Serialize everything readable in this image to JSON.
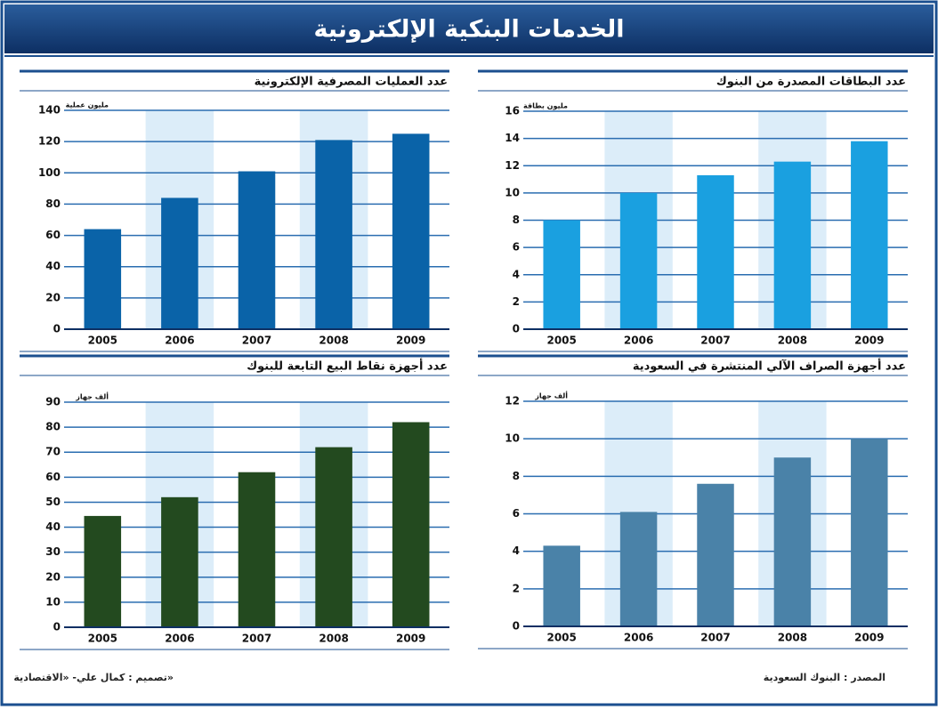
{
  "header": {
    "title": "الخدمات البنكية الإلكترونية"
  },
  "chart_data": [
    {
      "type": "bar",
      "title": "عدد العمليات المصرفية الإلكترونية",
      "unit": "مليون عملية",
      "categories": [
        "2005",
        "2006",
        "2007",
        "2008",
        "2009"
      ],
      "values": [
        64,
        84,
        101,
        121,
        125
      ],
      "color": "#0a63a8",
      "ylim": [
        0,
        140
      ],
      "yticks": [
        0,
        20,
        40,
        60,
        80,
        100,
        120,
        140
      ],
      "grid": true
    },
    {
      "type": "bar",
      "title": "عدد البطاقات المصدرة من البنوك",
      "unit": "مليون بطاقة",
      "categories": [
        "2005",
        "2006",
        "2007",
        "2008",
        "2009"
      ],
      "values": [
        8,
        10,
        11.3,
        12.3,
        13.8
      ],
      "color": "#1aa0e0",
      "ylim": [
        0,
        16
      ],
      "yticks": [
        0,
        2,
        4,
        6,
        8,
        10,
        12,
        14,
        16
      ],
      "grid": true
    },
    {
      "type": "bar",
      "title": "عدد أجهزة نقاط البيع التابعة للبنوك",
      "unit": "ألف جهاز",
      "categories": [
        "2005",
        "2006",
        "2007",
        "2008",
        "2009"
      ],
      "values": [
        44.5,
        52,
        62,
        72,
        82
      ],
      "color": "#234a1f",
      "ylim": [
        0,
        90
      ],
      "yticks": [
        0,
        10,
        20,
        30,
        40,
        50,
        60,
        70,
        80,
        90
      ],
      "grid": true
    },
    {
      "type": "bar",
      "title": "عدد أجهزة الصراف الآلي المنتشرة في السعودية",
      "unit": "ألف جهاز",
      "categories": [
        "2005",
        "2006",
        "2007",
        "2008",
        "2009"
      ],
      "values": [
        4.3,
        6.1,
        7.6,
        9,
        10
      ],
      "color": "#4a82a8",
      "ylim": [
        0,
        12
      ],
      "yticks": [
        0,
        2,
        4,
        6,
        8,
        10,
        12
      ],
      "grid": true
    }
  ],
  "footer": {
    "source": "المصدر : البنوك السعودية",
    "credit": "تصميم : كمال علي- «الاقتصادية»"
  }
}
